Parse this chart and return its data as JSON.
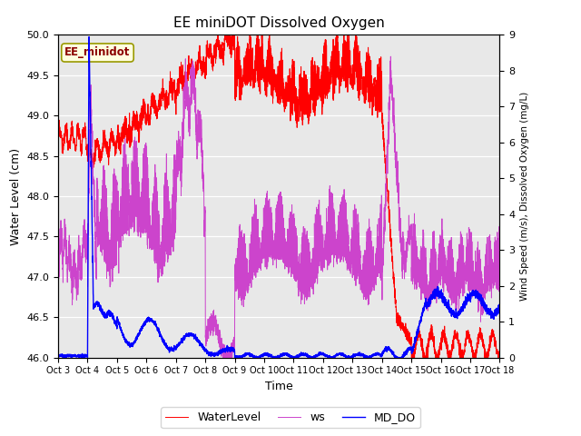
{
  "title": "EE miniDOT Dissolved Oxygen",
  "xlabel": "Time",
  "ylabel_left": "Water Level (cm)",
  "ylabel_right": "Wind Speed (m/s), Dissolved Oxygen (mg/L)",
  "annotation": "EE_minidot",
  "ylim_left": [
    46.0,
    50.0
  ],
  "ylim_right": [
    0.0,
    9.0
  ],
  "xtick_labels": [
    "Oct 3",
    "Oct 4",
    "Oct 5",
    "Oct 6",
    "Oct 7",
    "Oct 8",
    "Oct 9",
    "Oct 10",
    "Oct 11",
    "Oct 12",
    "Oct 13",
    "Oct 14",
    "Oct 15",
    "Oct 16",
    "Oct 17",
    "Oct 18"
  ],
  "bg_color": "#e8e8e8",
  "line_colors": {
    "WaterLevel": "red",
    "ws": "#cc44cc",
    "MD_DO": "blue"
  },
  "legend_colors": {
    "WaterLevel": "red",
    "ws": "#cc44cc",
    "MD_DO": "blue"
  },
  "legend_labels": [
    "WaterLevel",
    "ws",
    "MD_DO"
  ]
}
